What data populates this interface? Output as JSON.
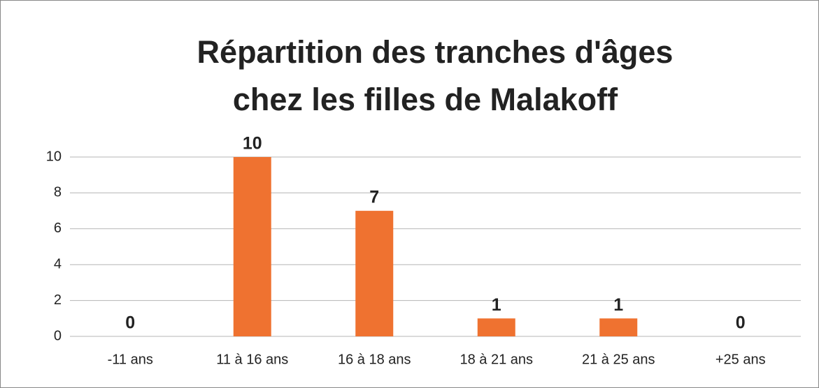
{
  "chart_data": {
    "type": "bar",
    "title": [
      "Répartition des tranches d'âges",
      "chez les filles de Malakoff"
    ],
    "categories": [
      "-11 ans",
      "11 à 16 ans",
      "16 à 18 ans",
      "18 à 21 ans",
      "21 à 25 ans",
      "+25 ans"
    ],
    "values": [
      0,
      10,
      7,
      1,
      1,
      0
    ],
    "color": "#ef7230",
    "ylim": [
      0,
      10
    ],
    "yticks": [
      0,
      2,
      4,
      6,
      8,
      10
    ],
    "grid": true
  }
}
